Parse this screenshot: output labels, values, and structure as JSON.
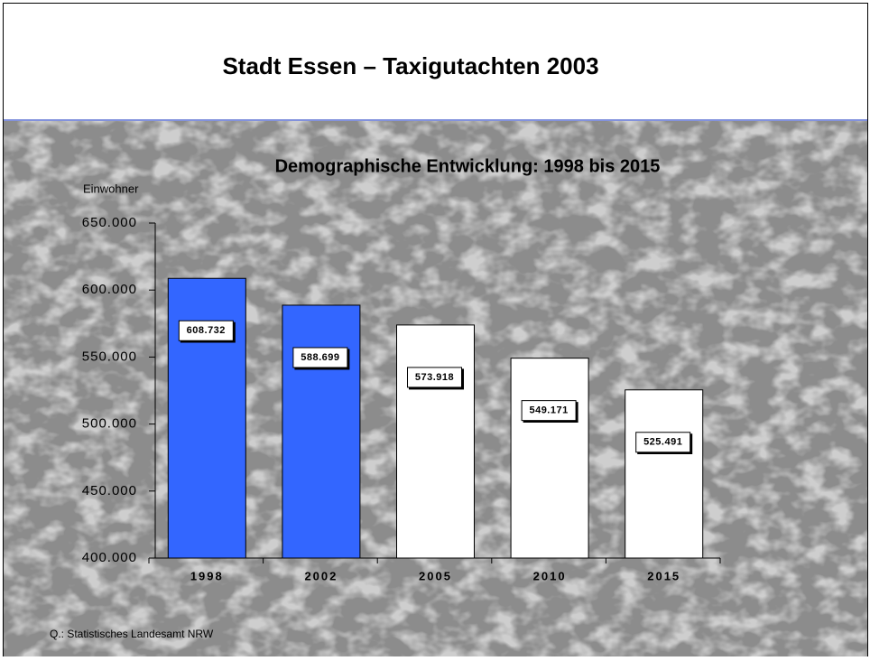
{
  "header": {
    "title": "Stadt Essen – Taxigutachten 2003"
  },
  "chart_data": {
    "type": "bar",
    "title": "Demographische Entwicklung: 1998 bis 2015",
    "y_label": "Einwohner",
    "categories": [
      "1998",
      "2002",
      "2005",
      "2010",
      "2015"
    ],
    "values": [
      608732,
      588699,
      573918,
      549171,
      525491
    ],
    "value_labels": [
      "608.732",
      "588.699",
      "573.918",
      "549.171",
      "525.491"
    ],
    "colors": [
      "#3366ff",
      "#3366ff",
      "#ffffff",
      "#ffffff",
      "#ffffff"
    ],
    "ylim": [
      400000,
      650000
    ],
    "yticks": [
      {
        "value": 400000,
        "label": "400.000"
      },
      {
        "value": 450000,
        "label": "450.000"
      },
      {
        "value": 500000,
        "label": "500.000"
      },
      {
        "value": 550000,
        "label": "550.000"
      },
      {
        "value": 600000,
        "label": "600.000"
      },
      {
        "value": 650000,
        "label": "650.000"
      }
    ]
  },
  "footer": {
    "source": "Q.: Statistisches Landesamt NRW"
  }
}
